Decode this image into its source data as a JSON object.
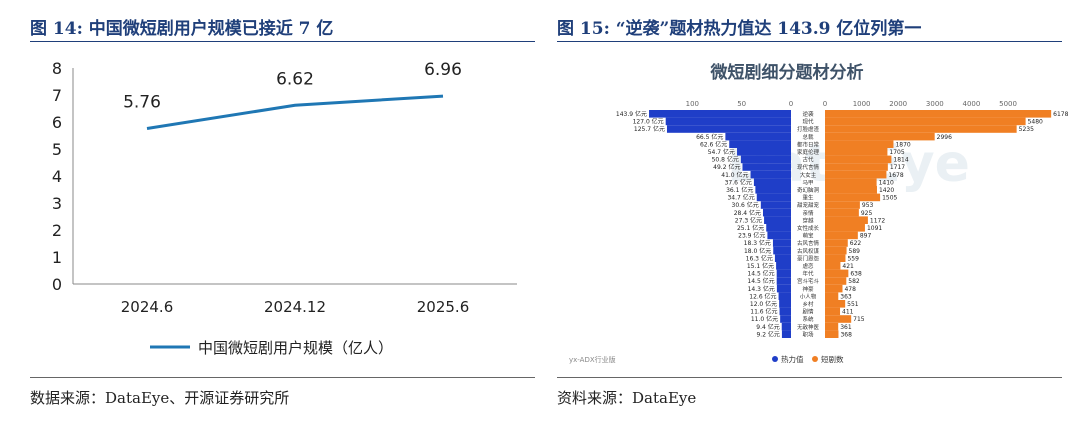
{
  "left": {
    "caption": "图 14:  中国微短剧用户规模已接近 7 亿",
    "source": "数据来源：DataEye、开源证券研究所"
  },
  "right": {
    "caption": "图 15:  “逆袭”题材热力值达 143.9 亿位列第一",
    "source": "资料来源：DataEye"
  },
  "colors": {
    "caption": "#1f3f7a",
    "line": "#1f77b4",
    "heat": "#1f3ec8",
    "count": "#f07f23"
  },
  "chart_data": [
    {
      "type": "line",
      "categories": [
        "2024.6",
        "2024.12",
        "2025.6"
      ],
      "series": [
        {
          "name": "中国微短剧用户规模（亿人）",
          "values": [
            5.76,
            6.62,
            6.96
          ]
        }
      ],
      "data_labels": [
        "5.76",
        "6.62",
        "6.96"
      ],
      "ylim": [
        0,
        8
      ],
      "yticks": [
        0,
        1,
        2,
        3,
        4,
        5,
        6,
        7,
        8
      ],
      "legend": "bottom",
      "grid": false
    },
    {
      "type": "bar",
      "title": "微短剧细分题材分析",
      "watermark": "DataEye",
      "footnote": "yx-ADX行业版",
      "legend": "bottom-left",
      "categories": [
        "逆袭",
        "现代",
        "打脸虐渣",
        "总裁",
        "都市日常",
        "家庭伦理",
        "古代",
        "现代言情",
        "大女主",
        "马甲",
        "奇幻脑洞",
        "重生",
        "甜宠甜宠",
        "亲情",
        "穿越",
        "女性成长",
        "萌宝",
        "古风言情",
        "古风权谋",
        "豪门恩怨",
        "虐恋",
        "年代",
        "宫斗宅斗",
        "神豪",
        "小人物",
        "乡村",
        "剧情",
        "系统",
        "无敌神医",
        "职场"
      ],
      "left_axis": {
        "ticks": [
          "100",
          "50",
          "0"
        ],
        "max": 150
      },
      "right_axis": {
        "ticks": [
          "0",
          "1000",
          "2000",
          "3000",
          "4000",
          "5000"
        ],
        "max": 5600
      },
      "series": [
        {
          "name": "热力值",
          "values": [
            143.9,
            127.0,
            125.7,
            66.5,
            62.6,
            54.7,
            50.8,
            49.2,
            41.0,
            37.6,
            36.1,
            34.7,
            30.6,
            28.4,
            27.3,
            25.1,
            23.9,
            18.3,
            18.0,
            16.3,
            15.1,
            14.5,
            14.5,
            14.3,
            12.6,
            12.0,
            11.6,
            11.0,
            9.4,
            9.2
          ],
          "labels": [
            "143.9 亿元",
            "127.0 亿元",
            "125.7 亿元",
            "66.5 亿元",
            "62.6 亿元",
            "54.7 亿元",
            "50.8 亿元",
            "49.2 亿元",
            "41.0 亿元",
            "37.6 亿元",
            "36.1 亿元",
            "34.7 亿元",
            "30.6 亿元",
            "28.4 亿元",
            "27.3 亿元",
            "25.1 亿元",
            "23.9 亿元",
            "18.3 亿元",
            "18.0 亿元",
            "16.3 亿元",
            "15.1 亿元",
            "14.5 亿元",
            "14.5 亿元",
            "14.3 亿元",
            "12.6 亿元",
            "12.0 亿元",
            "11.6 亿元",
            "11.0 亿元",
            "9.4 亿元",
            "9.2 亿元"
          ]
        },
        {
          "name": "短剧数",
          "values": [
            6178,
            5480,
            5235,
            2996,
            1870,
            1705,
            1814,
            1717,
            1678,
            1410,
            1420,
            1505,
            953,
            925,
            1172,
            1091,
            897,
            622,
            589,
            559,
            421,
            638,
            582,
            478,
            363,
            551,
            411,
            715,
            361,
            368
          ],
          "labels": [
            "6178",
            "5480",
            "5235",
            "2996",
            "1870",
            "1705",
            "1814",
            "1717",
            "1678",
            "1410",
            "1420",
            "1505",
            "953",
            "925",
            "1172",
            "1091",
            "897",
            "622",
            "589",
            "559",
            "421",
            "638",
            "582",
            "478",
            "363",
            "551",
            "411",
            "715",
            "361",
            "368"
          ]
        }
      ]
    }
  ]
}
